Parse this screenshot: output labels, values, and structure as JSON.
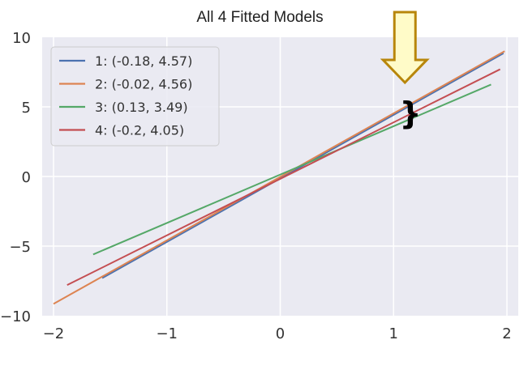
{
  "chart_data": {
    "type": "line",
    "title": "All 4 Fitted Models",
    "xlabel": "",
    "ylabel": "",
    "xlim": [
      -2.1,
      2.1
    ],
    "ylim": [
      -10,
      10
    ],
    "xticks": [
      -2,
      -1,
      0,
      1,
      2
    ],
    "yticks": [
      -10,
      -5,
      0,
      5,
      10
    ],
    "xtick_labels": [
      "−2",
      "−1",
      "0",
      "1",
      "2"
    ],
    "ytick_labels": [
      "−10",
      "−5",
      "0",
      "5",
      "10"
    ],
    "grid": true,
    "legend_position": "top-left",
    "series": [
      {
        "name": "1: (-0.18, 4.57)",
        "color": "#4c72b0",
        "x": [
          -1.57,
          1.97
        ],
        "y": [
          -7.3,
          8.85
        ]
      },
      {
        "name": "2: (-0.02, 4.56)",
        "color": "#dd8452",
        "x": [
          -2.0,
          1.98
        ],
        "y": [
          -9.15,
          9.0
        ]
      },
      {
        "name": "3: (0.13, 3.49)",
        "color": "#55a868",
        "x": [
          -1.65,
          1.86
        ],
        "y": [
          -5.6,
          6.6
        ]
      },
      {
        "name": "4: (-0.2, 4.05)",
        "color": "#c44e52",
        "x": [
          -1.88,
          1.94
        ],
        "y": [
          -7.8,
          7.7
        ]
      }
    ],
    "annotations": [
      {
        "type": "arrow",
        "direction": "down",
        "x": 1.05,
        "color": "#b8860b"
      },
      {
        "type": "brace",
        "symbol": "}",
        "x": 1.08
      }
    ]
  }
}
